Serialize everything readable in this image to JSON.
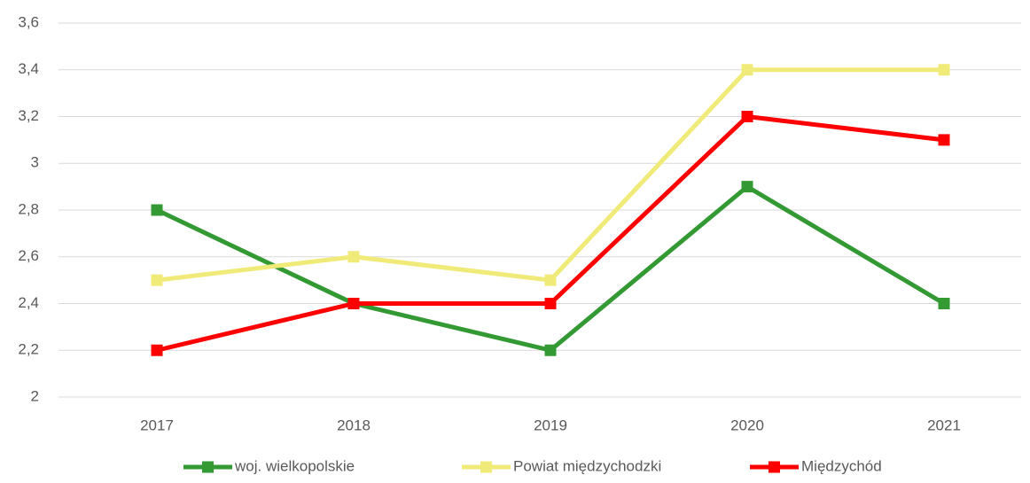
{
  "chart_data": {
    "type": "line",
    "categories": [
      "2017",
      "2018",
      "2019",
      "2020",
      "2021"
    ],
    "series": [
      {
        "name": "woj. wielkopolskie",
        "color": "#339933",
        "values": [
          2.8,
          2.4,
          2.2,
          2.9,
          2.4
        ]
      },
      {
        "name": "Powiat międzychodzki",
        "color": "#f0eb78",
        "values": [
          2.5,
          2.6,
          2.5,
          3.4,
          3.4
        ]
      },
      {
        "name": "Międzychód",
        "color": "#ff0000",
        "values": [
          2.2,
          2.4,
          2.4,
          3.2,
          3.1
        ]
      }
    ],
    "ylim": [
      2,
      3.6
    ],
    "yticks": [
      2,
      {
        "value": 2.2,
        "label": "2,2"
      },
      {
        "value": 2.4,
        "label": "2,4"
      },
      {
        "value": 2.6,
        "label": "2,6"
      },
      {
        "value": 2.8,
        "label": "2,8"
      },
      3,
      {
        "value": 3.2,
        "label": "3,2"
      },
      {
        "value": 3.4,
        "label": "3,4"
      },
      {
        "value": 3.6,
        "label": "3,6"
      }
    ],
    "grid": true,
    "legend": "bottom"
  }
}
